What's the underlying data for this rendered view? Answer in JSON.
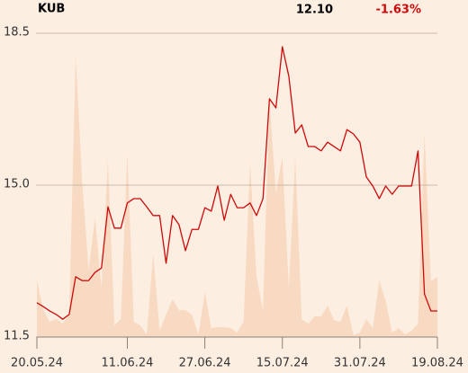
{
  "chart_data": {
    "type": "line",
    "title": "KUB",
    "last_price": "12.10",
    "change": "-1.63%",
    "categories": [
      "20.05.24",
      null,
      null,
      null,
      null,
      null,
      null,
      null,
      null,
      null,
      null,
      null,
      null,
      null,
      "11.06.24",
      null,
      null,
      null,
      null,
      null,
      null,
      null,
      null,
      null,
      null,
      null,
      "27.06.24",
      null,
      null,
      null,
      null,
      null,
      null,
      null,
      null,
      null,
      null,
      null,
      "15.07.24",
      null,
      null,
      null,
      null,
      null,
      null,
      null,
      null,
      null,
      null,
      null,
      "31.07.24",
      null,
      null,
      null,
      null,
      null,
      null,
      null,
      null,
      null,
      null,
      null,
      "19.08.24"
    ],
    "series": [
      {
        "type": "line",
        "color": "#cc0a0a",
        "values": [
          12.29,
          12.2,
          12.1,
          12.02,
          11.91,
          12.02,
          12.89,
          12.8,
          12.8,
          12.99,
          13.09,
          14.5,
          14.01,
          14.01,
          14.59,
          14.69,
          14.69,
          14.5,
          14.3,
          14.3,
          13.2,
          14.3,
          14.09,
          13.49,
          13.98,
          13.98,
          14.48,
          14.4,
          14.98,
          14.19,
          14.79,
          14.48,
          14.48,
          14.59,
          14.3,
          14.69,
          16.99,
          16.78,
          18.19,
          17.51,
          16.2,
          16.39,
          15.89,
          15.89,
          15.79,
          15.99,
          15.89,
          15.79,
          16.28,
          16.18,
          15.99,
          15.19,
          14.98,
          14.69,
          14.98,
          14.79,
          14.98,
          14.98,
          14.98,
          15.79,
          12.49,
          12.1,
          12.1
        ]
      },
      {
        "type": "area",
        "axis": "y2",
        "color": "#f8dac3",
        "values": [
          63,
          30,
          17,
          20,
          15,
          25,
          313,
          175,
          75,
          133,
          55,
          197,
          13,
          20,
          205,
          17,
          13,
          3,
          93,
          7,
          25,
          42,
          30,
          30,
          25,
          3,
          50,
          10,
          11,
          11,
          10,
          5,
          17,
          195,
          67,
          30,
          265,
          160,
          200,
          55,
          200,
          20,
          15,
          23,
          23,
          35,
          19,
          17,
          35,
          2,
          5,
          20,
          10,
          63,
          40,
          5,
          10,
          3,
          7,
          15,
          227,
          62,
          67
        ]
      }
    ],
    "ylim": [
      11.5,
      18.5
    ],
    "yticks": [
      11.5,
      {
        "value": 15,
        "label": "15.0"
      },
      18.5
    ],
    "y2lim": [
      0,
      338
    ],
    "grid": true
  }
}
